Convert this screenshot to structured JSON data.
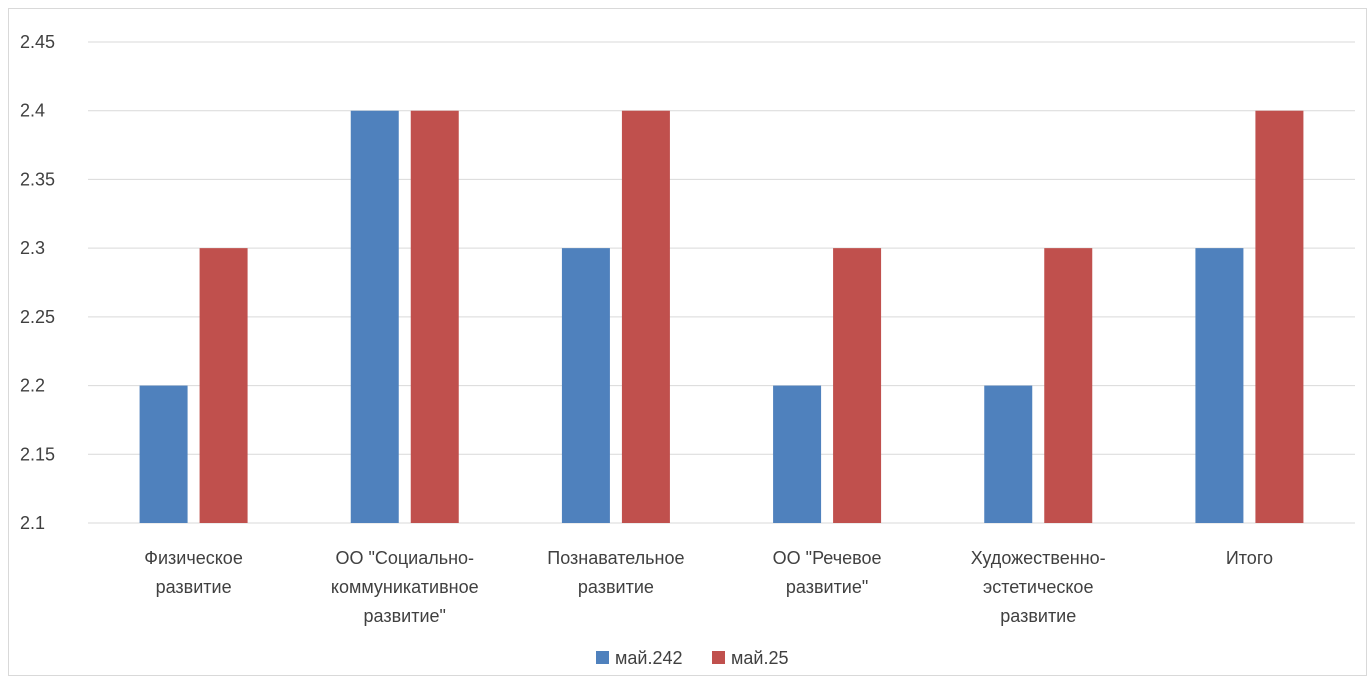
{
  "chart_data": {
    "type": "bar",
    "categories": [
      [
        "Физическое",
        "развитие"
      ],
      [
        "ОО \"Социально-",
        "коммуникативное",
        "развитие\""
      ],
      [
        "Познавательное",
        "развитие"
      ],
      [
        "ОО \"Речевое",
        "развитие\""
      ],
      [
        "Художественно-",
        "эстетическое",
        "развитие"
      ],
      [
        "Итого"
      ]
    ],
    "series": [
      {
        "name": "май.242",
        "color": "#4F81BD",
        "values": [
          2.2,
          2.4,
          2.3,
          2.2,
          2.2,
          2.3
        ]
      },
      {
        "name": "май.25",
        "color": "#C0504D",
        "values": [
          2.3,
          2.4,
          2.4,
          2.3,
          2.3,
          2.4
        ]
      }
    ],
    "ylim": [
      2.1,
      2.45
    ],
    "yticks": [
      "2.1",
      "2.15",
      "2.2",
      "2.25",
      "2.3",
      "2.35",
      "2.4",
      "2.45"
    ],
    "grid": true,
    "legend": "bottom",
    "title": "",
    "xlabel": "",
    "ylabel": ""
  }
}
